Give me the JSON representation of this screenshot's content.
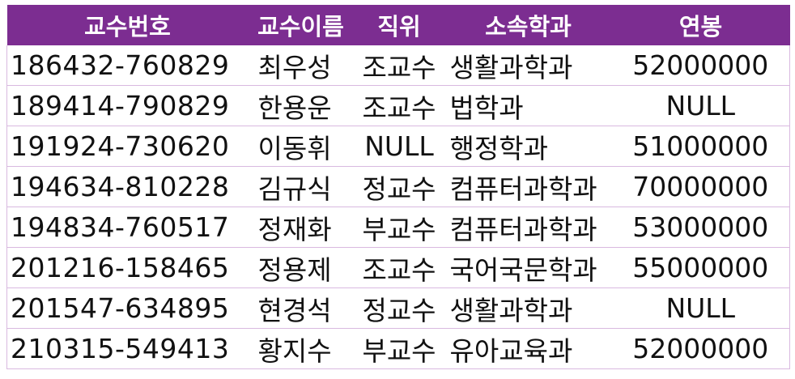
{
  "columns": [
    "교수번호",
    "교수이름",
    "직위",
    "소속학과",
    "연봉"
  ],
  "rows": [
    [
      "186432-760829",
      "최우성",
      "조교수",
      "생활과학과",
      "52000000"
    ],
    [
      "189414-790829",
      "한용운",
      "조교수",
      "법학과",
      "NULL"
    ],
    [
      "191924-730620",
      "이동휘",
      "NULL",
      "행정학과",
      "51000000"
    ],
    [
      "194634-810228",
      "김규식",
      "정교수",
      "컴퓨터과학과",
      "70000000"
    ],
    [
      "194834-760517",
      "정재화",
      "부교수",
      "컴퓨터과학과",
      "53000000"
    ],
    [
      "201216-158465",
      "정용제",
      "조교수",
      "국어국문학과",
      "55000000"
    ],
    [
      "201547-634895",
      "현경석",
      "정교수",
      "생활과학과",
      "NULL"
    ],
    [
      "210315-549413",
      "황지수",
      "부교수",
      "유아교육과",
      "52000000"
    ]
  ],
  "colors": {
    "header_bg": "#7c2d91",
    "header_text": "#ffffff",
    "grid_line": "#d9b9e0"
  }
}
